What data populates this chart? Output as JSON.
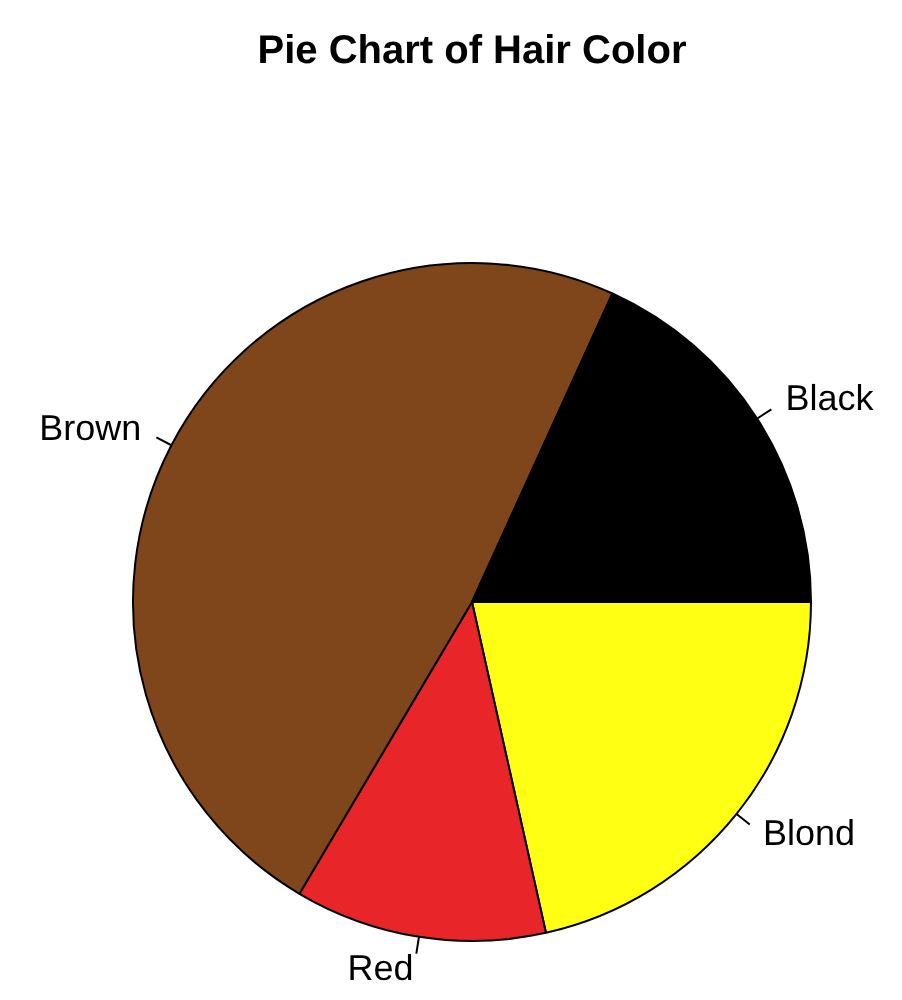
{
  "chart_data": {
    "type": "pie",
    "title": "Pie Chart of Hair Color",
    "categories": [
      "Blond",
      "Red",
      "Brown",
      "Black"
    ],
    "values": [
      21.5,
      12.0,
      48.3,
      18.2
    ],
    "colors": [
      "#ffff14",
      "#e8262a",
      "#7f461b",
      "#000000"
    ],
    "legend": false
  }
}
